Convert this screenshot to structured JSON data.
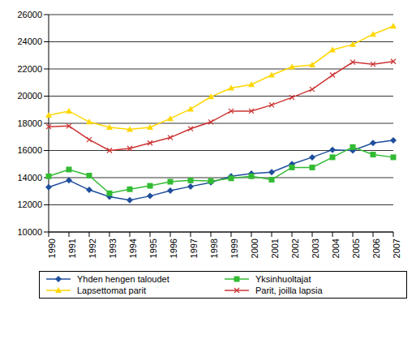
{
  "chart_data": {
    "type": "line",
    "categories": [
      "1990",
      "1991",
      "1992",
      "1993",
      "1994",
      "1995",
      "1996",
      "1997",
      "1998",
      "1999",
      "2000",
      "2001",
      "2002",
      "2003",
      "2004",
      "2005",
      "2006",
      "2007"
    ],
    "series": [
      {
        "name": "Yhden hengen taloudet",
        "color": "#1f4e9c",
        "marker": "diamond",
        "values": [
          13300,
          13800,
          13100,
          12600,
          12350,
          12650,
          13050,
          13350,
          13650,
          14100,
          14300,
          14400,
          15000,
          15500,
          16050,
          16000,
          16550,
          16750
        ]
      },
      {
        "name": "Yksinhuoltajat",
        "color": "#33bb33",
        "marker": "square",
        "values": [
          14100,
          14600,
          14150,
          12850,
          13150,
          13400,
          13700,
          13800,
          13750,
          13950,
          14100,
          13850,
          14750,
          14750,
          15500,
          16250,
          15700,
          15500
        ]
      },
      {
        "name": "Lapsettomat parit",
        "color": "#ffd700",
        "marker": "triangle",
        "values": [
          18600,
          18900,
          18100,
          17700,
          17550,
          17700,
          18350,
          19050,
          19950,
          20600,
          20850,
          21550,
          22150,
          22300,
          23400,
          23800,
          24550,
          25150
        ]
      },
      {
        "name": "Parit, joilla lapsia",
        "color": "#cc3333",
        "marker": "cross",
        "values": [
          17750,
          17800,
          16800,
          16000,
          16150,
          16550,
          16950,
          17600,
          18100,
          18900,
          18900,
          19350,
          19900,
          20500,
          21550,
          22500,
          22350,
          22550
        ]
      }
    ],
    "ylim": [
      10000,
      26000
    ],
    "yticks": [
      10000,
      12000,
      14000,
      16000,
      18000,
      20000,
      22000,
      24000,
      26000
    ],
    "grid": true,
    "legend": "bottom"
  }
}
